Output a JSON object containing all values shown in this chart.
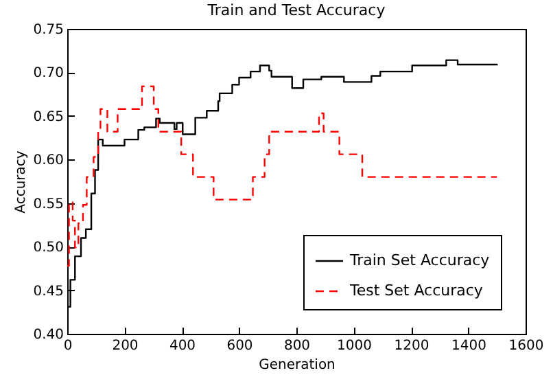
{
  "chart_data": {
    "type": "step",
    "title": "Train and Test Accuracy",
    "xlabel": "Generation",
    "ylabel": "Accuracy",
    "xlim": [
      0,
      1600
    ],
    "xticks": [
      0,
      200,
      400,
      600,
      800,
      1000,
      1200,
      1400,
      1600
    ],
    "ylim": [
      0.4,
      0.75
    ],
    "yticks": [
      {
        "value": 0.4,
        "label": "0.40"
      },
      {
        "value": 0.45,
        "label": "0.45"
      },
      {
        "value": 0.5,
        "label": "0.50"
      },
      {
        "value": 0.55,
        "label": "0.55"
      },
      {
        "value": 0.6,
        "label": "0.60"
      },
      {
        "value": 0.65,
        "label": "0.65"
      },
      {
        "value": 0.7,
        "label": "0.70"
      },
      {
        "value": 0.75,
        "label": "0.75"
      }
    ],
    "grid": false,
    "legend": "bottom right",
    "series": [
      {
        "name": "Train Set Accuracy",
        "color": "#000000",
        "line_style": "solid",
        "x": [
          0,
          11,
          27,
          48,
          65,
          84,
          97,
          108,
          124,
          200,
          248,
          269,
          310,
          323,
          374,
          382,
          403,
          447,
          487,
          527,
          532,
          576,
          600,
          640,
          673,
          705,
          713,
          785,
          824,
          887,
          966,
          1062,
          1093,
          1204,
          1323,
          1363,
          1500
        ],
        "values": [
          0.431,
          0.462,
          0.489,
          0.51,
          0.52,
          0.561,
          0.588,
          0.623,
          0.616,
          0.623,
          0.634,
          0.637,
          0.647,
          0.642,
          0.635,
          0.642,
          0.629,
          0.648,
          0.656,
          0.667,
          0.676,
          0.686,
          0.694,
          0.701,
          0.708,
          0.702,
          0.695,
          0.682,
          0.692,
          0.695,
          0.689,
          0.696,
          0.701,
          0.708,
          0.714,
          0.709,
          0.708
        ]
      },
      {
        "name": "Test Set Accuracy",
        "color": "#ff0000",
        "line_style": "dashed",
        "x": [
          0,
          6,
          19,
          27,
          39,
          55,
          68,
          92,
          108,
          116,
          140,
          176,
          261,
          302,
          318,
          398,
          439,
          511,
          648,
          689,
          705,
          879,
          895,
          950,
          1030,
          1500
        ],
        "values": [
          0.478,
          0.551,
          0.53,
          0.499,
          0.527,
          0.548,
          0.58,
          0.603,
          0.632,
          0.658,
          0.632,
          0.658,
          0.684,
          0.658,
          0.632,
          0.606,
          0.58,
          0.554,
          0.58,
          0.606,
          0.632,
          0.653,
          0.632,
          0.606,
          0.58,
          0.58
        ]
      }
    ]
  }
}
